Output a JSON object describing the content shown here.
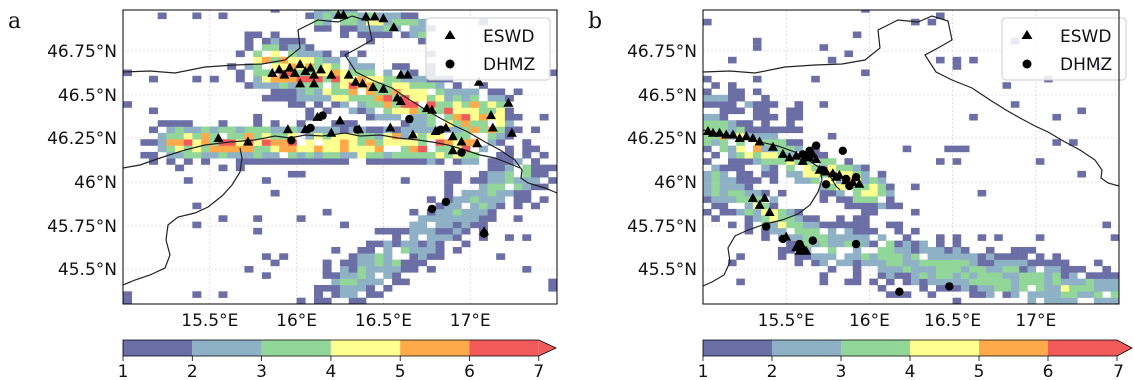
{
  "figure": {
    "panels": [
      {
        "letter": "a",
        "lat_ticks": [
          "46.75°N",
          "46.5°N",
          "46.25°N",
          "46°N",
          "45.75°N",
          "45.5°N"
        ],
        "lon_ticks": [
          "15.5°E",
          "16°E",
          "16.5°E",
          "17°E"
        ],
        "legend": [
          {
            "label": "ESWD",
            "marker": "triangle"
          },
          {
            "label": "DHMZ",
            "marker": "circle"
          }
        ],
        "colorbar": {
          "ticks": [
            "1",
            "2",
            "3",
            "4",
            "5",
            "6",
            "7"
          ]
        }
      },
      {
        "letter": "b",
        "lat_ticks": [
          "46.75°N",
          "46.5°N",
          "46.25°N",
          "46°N",
          "45.75°N",
          "45.5°N"
        ],
        "lon_ticks": [
          "15.5°E",
          "16°E",
          "16.5°E",
          "17°E"
        ],
        "legend": [
          {
            "label": "ESWD",
            "marker": "triangle"
          },
          {
            "label": "DHMZ",
            "marker": "circle"
          }
        ],
        "colorbar": {
          "ticks": [
            "1",
            "2",
            "3",
            "4",
            "5",
            "6",
            "7"
          ]
        }
      }
    ],
    "colors": [
      "#6b6fa6",
      "#8fb1c6",
      "#93d69a",
      "#ffff8f",
      "#ffa94a",
      "#f25a5a"
    ]
  },
  "chart_data": [
    {
      "type": "heatmap",
      "panel": "a",
      "lon_range": [
        15.0,
        17.5
      ],
      "lat_range": [
        45.3,
        46.97
      ],
      "colorbar_range": [
        1,
        7
      ],
      "grid": true,
      "legend_position": "top-right",
      "eswd_reports": [
        [
          15.55,
          46.24
        ],
        [
          15.72,
          46.22
        ],
        [
          15.86,
          46.61
        ],
        [
          15.9,
          46.63
        ],
        [
          15.93,
          46.6
        ],
        [
          15.96,
          46.64
        ],
        [
          15.99,
          46.61
        ],
        [
          16.02,
          46.66
        ],
        [
          16.05,
          46.62
        ],
        [
          16.08,
          46.64
        ],
        [
          16.1,
          46.6
        ],
        [
          16.14,
          46.63
        ],
        [
          15.95,
          46.29
        ],
        [
          16.05,
          46.29
        ],
        [
          16.12,
          46.36
        ],
        [
          16.2,
          46.27
        ],
        [
          16.25,
          46.34
        ],
        [
          16.34,
          46.56
        ],
        [
          16.3,
          46.6
        ],
        [
          16.38,
          46.55
        ],
        [
          16.44,
          46.53
        ],
        [
          16.5,
          46.52
        ],
        [
          16.58,
          46.47
        ],
        [
          16.6,
          46.6
        ],
        [
          16.64,
          46.6
        ],
        [
          16.54,
          46.3
        ],
        [
          16.36,
          46.29
        ],
        [
          16.67,
          46.26
        ],
        [
          16.24,
          46.94
        ],
        [
          16.27,
          46.94
        ],
        [
          16.4,
          46.93
        ],
        [
          16.45,
          46.93
        ],
        [
          16.5,
          46.92
        ],
        [
          16.56,
          46.87
        ],
        [
          16.75,
          46.41
        ],
        [
          16.78,
          46.4
        ],
        [
          16.8,
          46.28
        ],
        [
          16.86,
          46.3
        ],
        [
          16.9,
          46.25
        ],
        [
          16.9,
          46.17
        ],
        [
          16.95,
          46.22
        ],
        [
          17.04,
          46.21
        ],
        [
          17.12,
          46.37
        ],
        [
          17.13,
          46.3
        ],
        [
          17.22,
          46.44
        ],
        [
          17.24,
          46.27
        ],
        [
          16.6,
          46.45
        ],
        [
          17.05,
          46.56
        ],
        [
          16.2,
          46.6
        ],
        [
          16.1,
          46.55
        ],
        [
          16.02,
          46.55
        ],
        [
          17.08,
          45.71
        ]
      ],
      "dhmz_reports": [
        [
          15.97,
          46.23
        ],
        [
          16.08,
          46.3
        ],
        [
          16.15,
          46.37
        ],
        [
          16.35,
          46.29
        ],
        [
          16.65,
          46.35
        ],
        [
          16.83,
          46.29
        ],
        [
          16.95,
          46.16
        ],
        [
          16.78,
          45.84
        ],
        [
          16.86,
          45.88
        ],
        [
          17.08,
          45.7
        ]
      ]
    },
    {
      "type": "heatmap",
      "panel": "b",
      "lon_range": [
        15.0,
        17.5
      ],
      "lat_range": [
        45.3,
        46.97
      ],
      "colorbar_range": [
        1,
        7
      ],
      "grid": true,
      "legend_position": "top-right",
      "eswd_reports": [
        [
          15.03,
          46.28
        ],
        [
          15.06,
          46.27
        ],
        [
          15.1,
          46.27
        ],
        [
          15.14,
          46.26
        ],
        [
          15.18,
          46.26
        ],
        [
          15.22,
          46.24
        ],
        [
          15.26,
          46.25
        ],
        [
          15.3,
          46.24
        ],
        [
          15.34,
          46.22
        ],
        [
          15.42,
          46.19
        ],
        [
          15.48,
          46.15
        ],
        [
          15.52,
          46.13
        ],
        [
          15.56,
          46.14
        ],
        [
          15.6,
          46.11
        ],
        [
          15.64,
          46.13
        ],
        [
          15.68,
          46.12
        ],
        [
          15.7,
          46.06
        ],
        [
          15.74,
          46.05
        ],
        [
          15.78,
          46.04
        ],
        [
          15.82,
          46.03
        ],
        [
          15.86,
          46.0
        ],
        [
          15.9,
          45.99
        ],
        [
          15.94,
          45.98
        ],
        [
          15.3,
          45.9
        ],
        [
          15.34,
          45.86
        ],
        [
          15.37,
          45.9
        ],
        [
          15.4,
          45.82
        ],
        [
          15.5,
          45.68
        ],
        [
          15.56,
          45.62
        ],
        [
          15.58,
          45.6
        ],
        [
          15.6,
          45.62
        ],
        [
          15.62,
          45.6
        ],
        [
          15.66,
          46.15
        ],
        [
          15.62,
          46.14
        ],
        [
          15.8,
          46.02
        ]
      ],
      "dhmz_reports": [
        [
          15.38,
          45.74
        ],
        [
          15.48,
          45.67
        ],
        [
          15.58,
          45.64
        ],
        [
          15.66,
          45.66
        ],
        [
          15.68,
          46.2
        ],
        [
          15.72,
          46.06
        ],
        [
          15.74,
          45.98
        ],
        [
          15.84,
          46.17
        ],
        [
          15.86,
          46.01
        ],
        [
          15.88,
          45.97
        ],
        [
          15.92,
          46.02
        ],
        [
          15.92,
          45.64
        ],
        [
          16.18,
          45.37
        ],
        [
          16.48,
          45.4
        ],
        [
          15.64,
          46.17
        ],
        [
          15.6,
          46.15
        ]
      ]
    }
  ]
}
